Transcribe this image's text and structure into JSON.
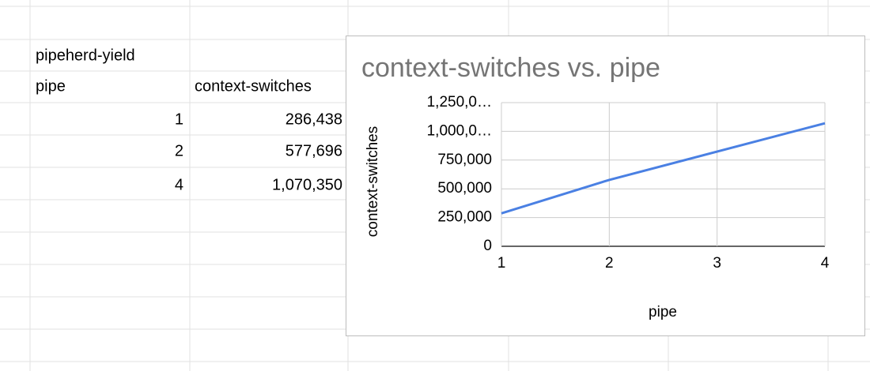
{
  "sheet": {
    "title": "pipeherd-yield",
    "headers": [
      "pipe",
      "context-switches"
    ],
    "rows": [
      [
        "1",
        "286,438"
      ],
      [
        "2",
        "577,696"
      ],
      [
        "4",
        "1,070,350"
      ]
    ]
  },
  "chart_data": {
    "type": "line",
    "title": "context-switches vs. pipe",
    "x_label": "pipe",
    "y_label": "context-switches",
    "x": [
      1,
      2,
      4
    ],
    "series": [
      {
        "name": "context-switches",
        "color": "#4a80e3",
        "values": [
          286438,
          577696,
          1070350
        ]
      }
    ],
    "xlim": [
      1,
      4
    ],
    "xticks": [
      1,
      2,
      3,
      4
    ],
    "ylim": [
      0,
      1250000
    ],
    "yticks": [
      0,
      {
        "value": 250000,
        "label": "250,000"
      },
      {
        "value": 500000,
        "label": "500,000"
      },
      {
        "value": 750000,
        "label": "750,000"
      },
      {
        "value": 1000000,
        "label": "1,000,0…"
      },
      {
        "value": 1250000,
        "label": "1,250,0…"
      }
    ],
    "grid": true
  }
}
